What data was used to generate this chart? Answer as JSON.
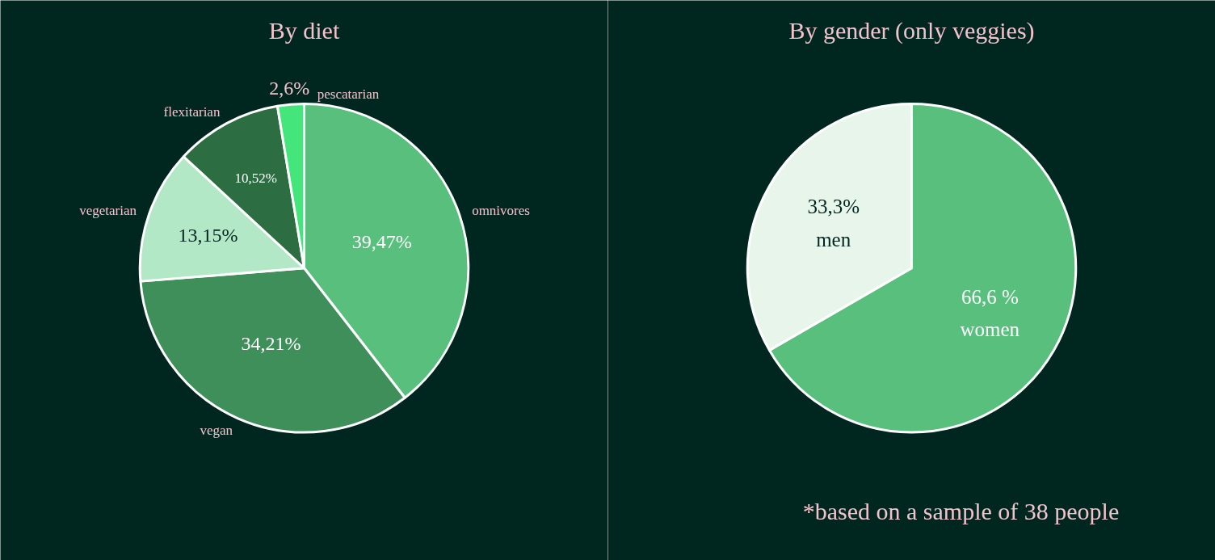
{
  "chart_data": [
    {
      "type": "pie",
      "title": "By diet",
      "categories": [
        "omnivores",
        "vegan",
        "vegetarian",
        "flexitarian",
        "pescatarian"
      ],
      "values": [
        39.47,
        34.21,
        13.15,
        10.52,
        2.6
      ],
      "value_labels": [
        "39,47%",
        "34,21%",
        "13,15%",
        "10,52%",
        "2,6%"
      ],
      "colors": [
        "#58bf7c",
        "#3f8f5a",
        "#b2e8c6",
        "#2c6e41",
        "#44e57a"
      ]
    },
    {
      "type": "pie",
      "title": "By gender (only veggies)",
      "categories": [
        "women",
        "men"
      ],
      "values": [
        66.6,
        33.3
      ],
      "value_labels": [
        "66,6 %",
        "33,3%"
      ],
      "colors": [
        "#58bf7c",
        "#e8f5ea"
      ],
      "annotations": [
        "*based on a sample of 38 people"
      ]
    }
  ]
}
